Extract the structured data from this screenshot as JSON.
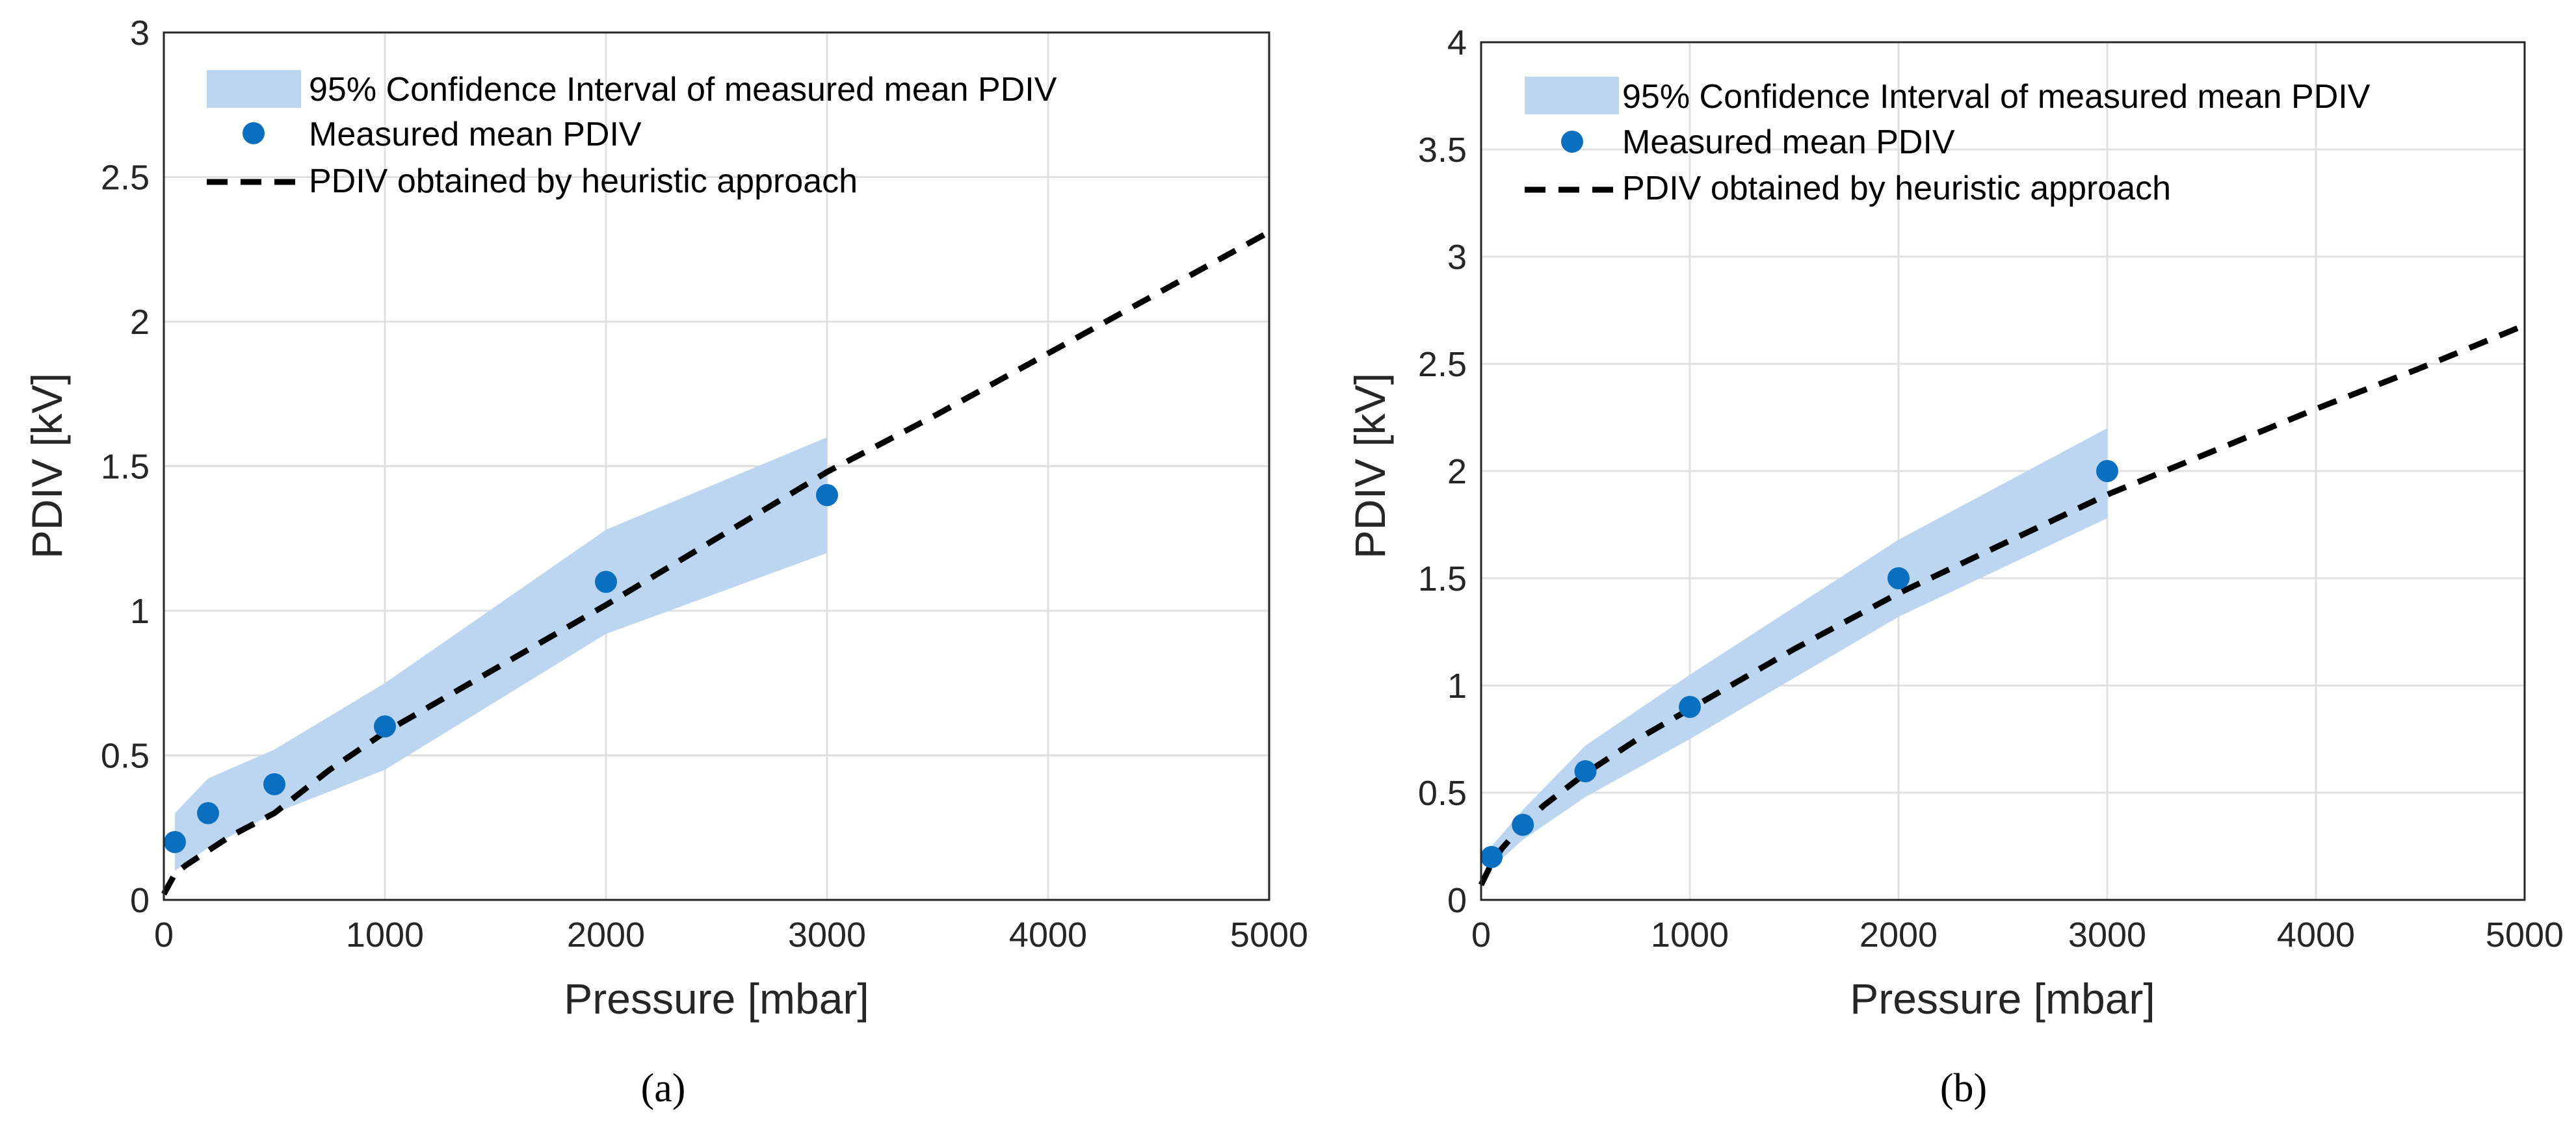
{
  "colors": {
    "band": "#bcd6f2",
    "marker": "#0a6fbf",
    "curve": "#000000"
  },
  "chart_data": [
    {
      "type": "line",
      "caption": "(a)",
      "title": "",
      "xlabel": "Pressure [mbar]",
      "ylabel": "PDIV [kV]",
      "xlim": [
        0,
        5000
      ],
      "ylim": [
        0,
        3
      ],
      "xticks": [
        0,
        1000,
        2000,
        3000,
        4000,
        5000
      ],
      "xtick_labels": [
        "0",
        "1000",
        "2000",
        "3000",
        "4000",
        "5000"
      ],
      "yticks": [
        0,
        0.5,
        1,
        1.5,
        2,
        2.5,
        3
      ],
      "ytick_labels": [
        "0",
        "0.5",
        "1",
        "1.5",
        "2",
        "2.5",
        "3"
      ],
      "grid": true,
      "legend_position": "top-left",
      "legend": [
        "95% Confidence Interval of measured mean PDIV",
        "Measured mean PDIV",
        "PDIV obtained by heuristic approach"
      ],
      "confidence_band": {
        "x": [
          50,
          200,
          500,
          1000,
          2000,
          3000
        ],
        "lower": [
          0.1,
          0.18,
          0.3,
          0.45,
          0.92,
          1.2
        ],
        "upper": [
          0.3,
          0.42,
          0.52,
          0.75,
          1.28,
          1.6
        ]
      },
      "measured": {
        "x": [
          50,
          200,
          500,
          1000,
          2000,
          3000
        ],
        "y": [
          0.2,
          0.3,
          0.4,
          0.6,
          1.1,
          1.4
        ]
      },
      "heuristic": {
        "x": [
          0,
          50,
          100,
          200,
          300,
          500,
          750,
          1000,
          1500,
          2000,
          2500,
          3000,
          3500,
          4000,
          4500,
          5000
        ],
        "y": [
          0.02,
          0.09,
          0.12,
          0.17,
          0.22,
          0.3,
          0.45,
          0.58,
          0.8,
          1.02,
          1.25,
          1.48,
          1.68,
          1.89,
          2.1,
          2.31
        ]
      }
    },
    {
      "type": "line",
      "caption": "(b)",
      "title": "",
      "xlabel": "Pressure [mbar]",
      "ylabel": "PDIV [kV]",
      "xlim": [
        0,
        5000
      ],
      "ylim": [
        0,
        4
      ],
      "xticks": [
        0,
        1000,
        2000,
        3000,
        4000,
        5000
      ],
      "xtick_labels": [
        "0",
        "1000",
        "2000",
        "3000",
        "4000",
        "5000"
      ],
      "yticks": [
        0,
        0.5,
        1,
        1.5,
        2,
        2.5,
        3,
        3.5,
        4
      ],
      "ytick_labels": [
        "0",
        "0.5",
        "1",
        "1.5",
        "2",
        "2.5",
        "3",
        "3.5",
        "4"
      ],
      "grid": true,
      "legend_position": "top-left",
      "legend": [
        "95% Confidence Interval of measured mean PDIV",
        "Measured mean PDIV",
        "PDIV obtained by heuristic approach"
      ],
      "confidence_band": {
        "x": [
          50,
          200,
          500,
          1000,
          2000,
          3000
        ],
        "lower": [
          0.15,
          0.28,
          0.48,
          0.75,
          1.32,
          1.78
        ],
        "upper": [
          0.25,
          0.42,
          0.72,
          1.05,
          1.68,
          2.2
        ]
      },
      "measured": {
        "x": [
          50,
          200,
          500,
          1000,
          2000,
          3000
        ],
        "y": [
          0.2,
          0.35,
          0.6,
          0.9,
          1.5,
          2.0
        ]
      },
      "heuristic": {
        "x": [
          0,
          50,
          100,
          200,
          300,
          500,
          750,
          1000,
          1500,
          2000,
          2500,
          3000,
          3500,
          4000,
          4500,
          5000
        ],
        "y": [
          0.07,
          0.17,
          0.24,
          0.35,
          0.44,
          0.59,
          0.75,
          0.89,
          1.17,
          1.43,
          1.66,
          1.89,
          2.09,
          2.29,
          2.48,
          2.68
        ]
      }
    }
  ]
}
